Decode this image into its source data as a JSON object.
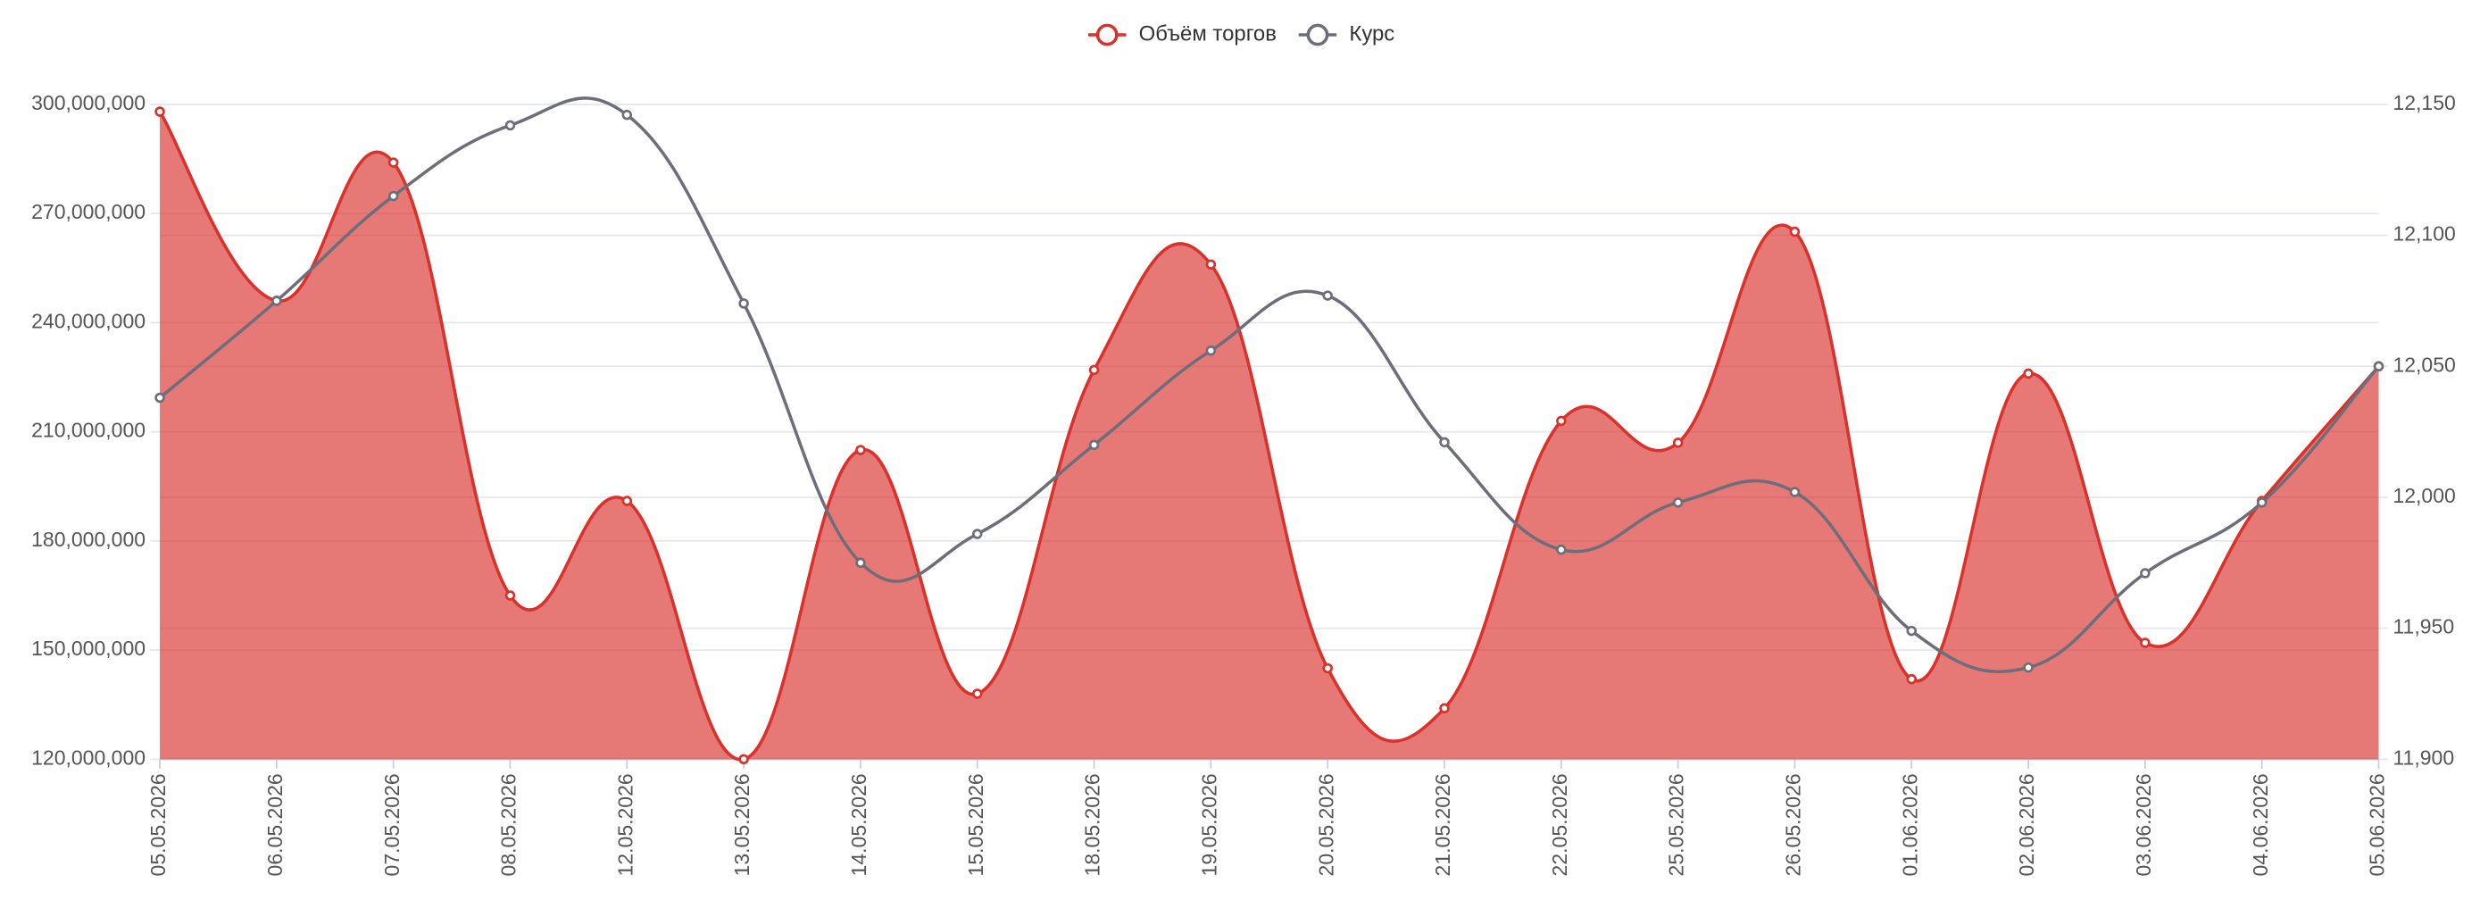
{
  "chart_data": {
    "type": "line",
    "categories": [
      "05.05.2026",
      "06.05.2026",
      "07.05.2026",
      "08.05.2026",
      "12.05.2026",
      "13.05.2026",
      "14.05.2026",
      "15.05.2026",
      "18.05.2026",
      "19.05.2026",
      "20.05.2026",
      "21.05.2026",
      "22.05.2026",
      "25.05.2026",
      "26.05.2026",
      "01.06.2026",
      "02.06.2026",
      "03.06.2026",
      "04.06.2026",
      "05.06.2026"
    ],
    "series": [
      {
        "name": "Объём торгов",
        "color": "#d9312b",
        "fill": true,
        "values": [
          298000000,
          246000000,
          284000000,
          165000000,
          191000000,
          120000000,
          205000000,
          138000000,
          227000000,
          256000000,
          145000000,
          134000000,
          213000000,
          207000000,
          265000000,
          142000000,
          226000000,
          152000000,
          191000000,
          228000000
        ]
      },
      {
        "name": "Курс",
        "color": "#6e6e7a",
        "axis": "y2",
        "values": [
          12038,
          12075,
          12115,
          12142,
          12146,
          12074,
          11975,
          11986,
          12020,
          12056,
          12077,
          12021,
          11980,
          11998,
          12002,
          11949,
          11935,
          11971,
          11998,
          12050
        ]
      }
    ],
    "ylim": [
      120000000,
      300000000
    ],
    "yticks": [
      {
        "value": 120000000,
        "label": "120,000,000"
      },
      {
        "value": 150000000,
        "label": "150,000,000"
      },
      {
        "value": 180000000,
        "label": "180,000,000"
      },
      {
        "value": 210000000,
        "label": "210,000,000"
      },
      {
        "value": 240000000,
        "label": "240,000,000"
      },
      {
        "value": 270000000,
        "label": "270,000,000"
      },
      {
        "value": 300000000,
        "label": "300,000,000"
      }
    ],
    "y2lim": [
      11900,
      12150
    ],
    "y2ticks": [
      {
        "value": 11900,
        "label": "11,900"
      },
      {
        "value": 11950,
        "label": "11,950"
      },
      {
        "value": 12000,
        "label": "12,000"
      },
      {
        "value": 12050,
        "label": "12,050"
      },
      {
        "value": 12100,
        "label": "12,100"
      },
      {
        "value": 12150,
        "label": "12,150"
      }
    ],
    "grid": true,
    "legend": "top"
  }
}
